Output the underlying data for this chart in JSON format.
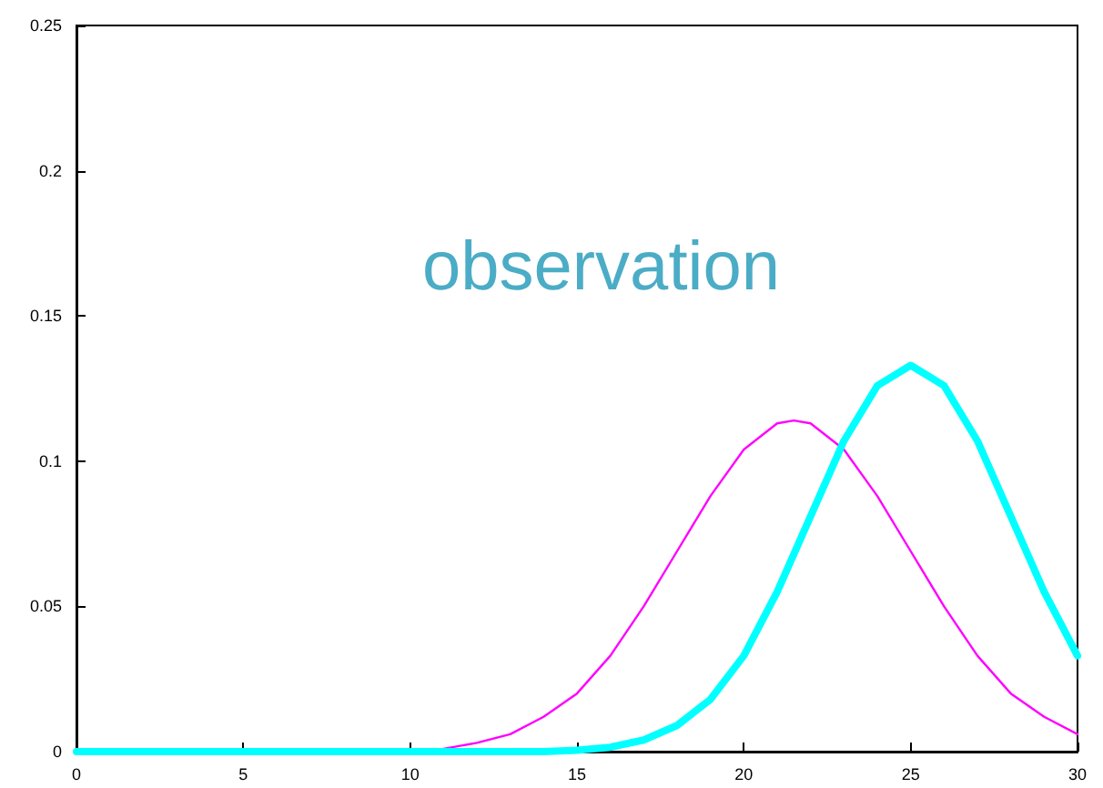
{
  "chart_data": {
    "type": "line",
    "x": [
      0,
      2,
      4,
      6,
      8,
      10,
      11,
      12,
      13,
      14,
      15,
      16,
      17,
      18,
      19,
      20,
      21,
      21.5,
      22,
      23,
      24,
      25,
      26,
      27,
      28,
      29,
      30
    ],
    "series": [
      {
        "color": "#ff00ff",
        "values": [
          null,
          null,
          null,
          null,
          null,
          null,
          0.001,
          0.003,
          0.006,
          0.012,
          0.02,
          0.033,
          0.05,
          0.069,
          0.088,
          0.104,
          0.113,
          0.114,
          0.113,
          0.104,
          0.088,
          0.069,
          0.05,
          0.033,
          0.02,
          0.012,
          0.006
        ]
      },
      {
        "color": "#00ffff",
        "values": [
          0,
          0,
          0,
          0,
          0,
          0,
          0,
          0,
          0,
          0,
          0.0005,
          0.0015,
          0.004,
          0.009,
          0.018,
          0.033,
          0.055,
          0.068,
          0.081,
          0.107,
          0.126,
          0.133,
          0.126,
          0.107,
          0.081,
          0.055,
          0.033
        ]
      }
    ],
    "xlim": [
      0,
      30
    ],
    "xticks": [
      0,
      5,
      10,
      15,
      20,
      25,
      30
    ],
    "ylim": [
      0,
      0.25
    ],
    "yticks": [
      0,
      0.05,
      0.1,
      0.15,
      0.2,
      0.25
    ],
    "annotations": [
      "observation"
    ],
    "grid": false,
    "marker": "none",
    "line_style": "solid"
  }
}
